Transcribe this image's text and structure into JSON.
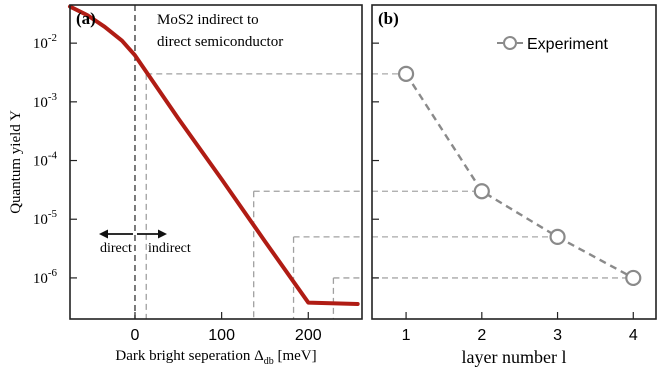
{
  "chart_data": [
    {
      "panel_label": "(a)",
      "type": "line",
      "annotation": [
        "MoS2 indirect to",
        "direct semiconductor"
      ],
      "ylabel": "Quantum yield Y",
      "xlabel_main": "Dark bright seperation Δ",
      "xlabel_sub": "db",
      "xlabel_unit": " [meV]",
      "x_ticks": [
        0,
        100,
        200
      ],
      "x_tick_labels": [
        "0",
        "100",
        "200"
      ],
      "xlim": [
        -75,
        262
      ],
      "ylim_log10": [
        -6.7,
        -1.35
      ],
      "y_scale": "log",
      "y_ticks": [
        {
          "base": "10",
          "exp": "-2",
          "log": -2
        },
        {
          "base": "10",
          "exp": "-3",
          "log": -3
        },
        {
          "base": "10",
          "exp": "-4",
          "log": -4
        },
        {
          "base": "10",
          "exp": "-5",
          "log": -5
        },
        {
          "base": "10",
          "exp": "-6",
          "log": -6
        }
      ],
      "series": [
        {
          "color": "#b01c14",
          "x": [
            -75,
            -55,
            -35,
            -15,
            0,
            50,
            100,
            150,
            200,
            257
          ],
          "y": [
            0.042,
            0.03,
            0.019,
            0.011,
            0.0062,
            0.00052,
            4.8e-05,
            4.2e-06,
            3.8e-07,
            3.6e-07
          ]
        }
      ],
      "boundary_x": 0,
      "regions": {
        "left": "direct",
        "right": "indirect"
      },
      "guide_lines": [
        {
          "x": 13,
          "y": 0.003
        },
        {
          "x": 137,
          "y": 3e-05
        },
        {
          "x": 183,
          "y": 5e-06
        },
        {
          "x": 229,
          "y": 1e-06
        }
      ]
    },
    {
      "panel_label": "(b)",
      "type": "line",
      "xlabel": "layer number l",
      "x_ticks": [
        1,
        2,
        3,
        4
      ],
      "x_tick_labels": [
        "1",
        "2",
        "3",
        "4"
      ],
      "xlim": [
        0.55,
        4.3
      ],
      "ylim_log10": [
        -6.7,
        -1.35
      ],
      "y_scale": "log",
      "legend": {
        "position": "top-right",
        "label": "Experiment"
      },
      "series": [
        {
          "name": "Experiment",
          "color": "#8a8a8a",
          "x": [
            1,
            2,
            3,
            4
          ],
          "y": [
            0.003,
            3e-05,
            5e-06,
            1e-06
          ]
        }
      ]
    }
  ]
}
